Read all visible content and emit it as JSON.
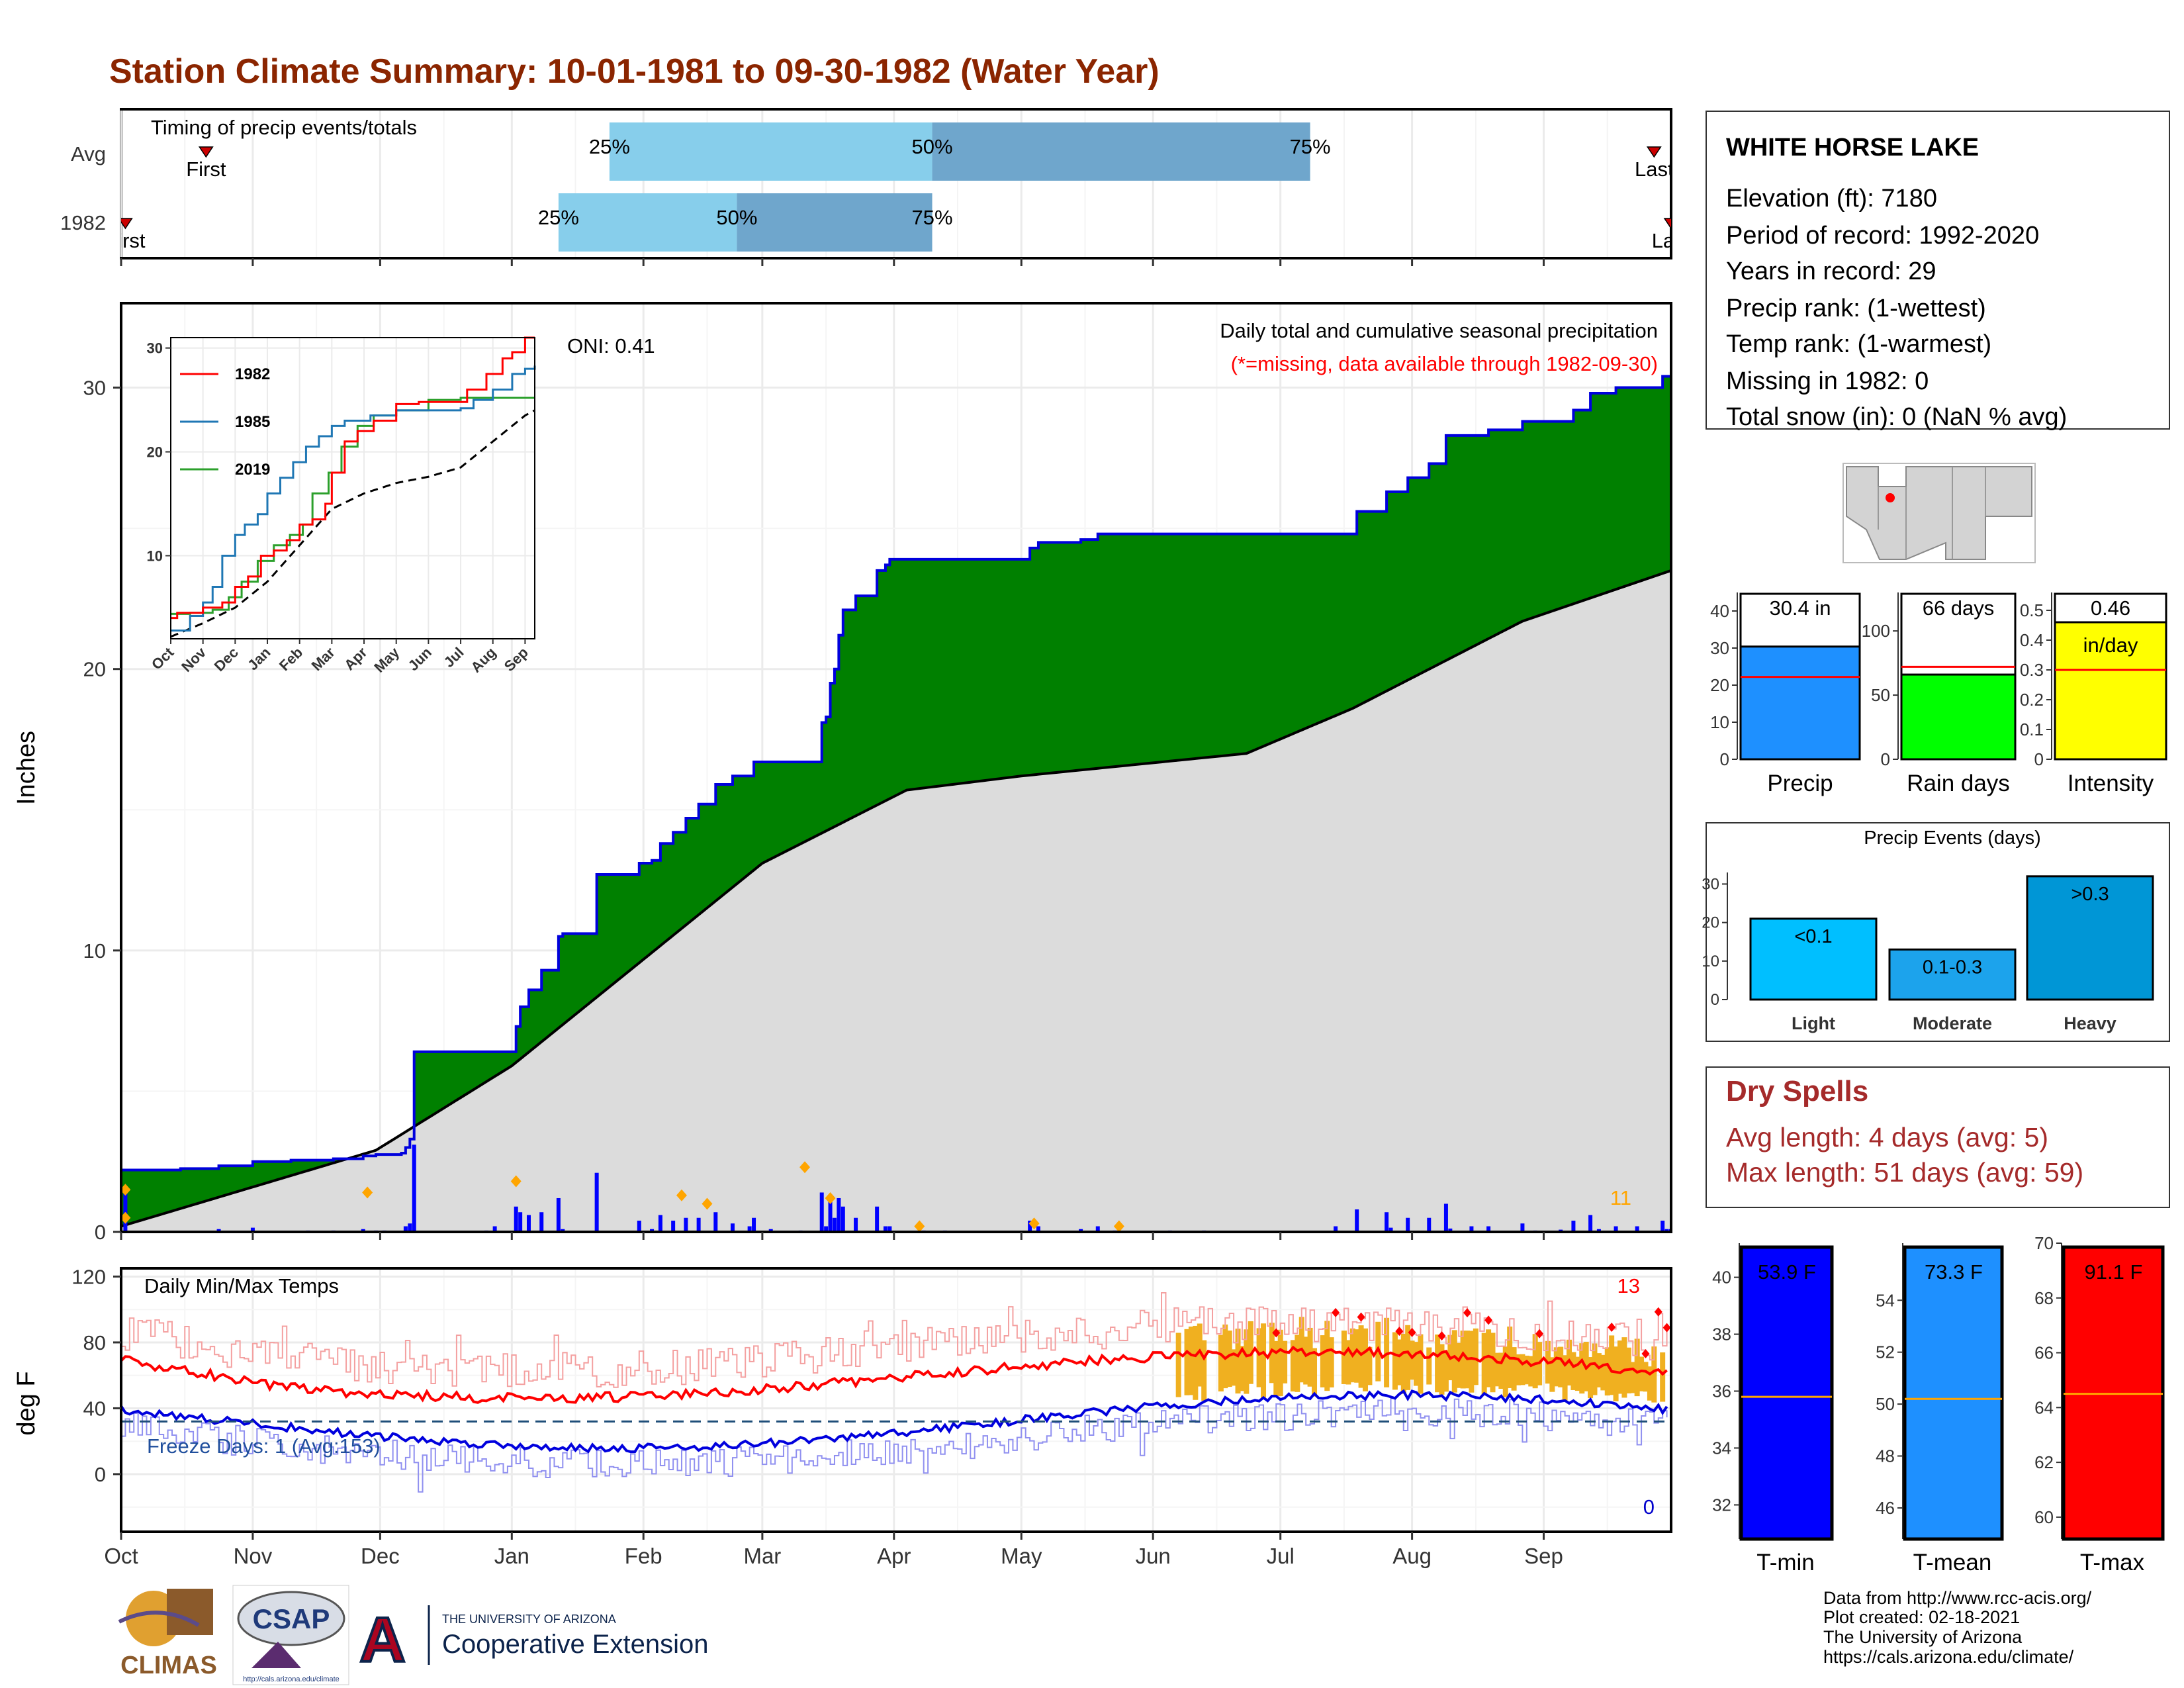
{
  "title": "Station Climate Summary: 10-01-1981 to 09-30-1982 (Water Year)",
  "colors": {
    "title": "#8B2500",
    "cum_fill": "#008000",
    "cum_line": "#0000DD",
    "avg_fill": "#DCDCDC",
    "daily_bar": "#0000FF",
    "marker": "#FFA500",
    "q_light": "#87CEEB",
    "q_dark": "#6FA6CC",
    "dry_text": "#A52A2A"
  },
  "months": [
    "Oct",
    "Nov",
    "Dec",
    "Jan",
    "Feb",
    "Mar",
    "Apr",
    "May",
    "Jun",
    "Jul",
    "Aug",
    "Sep"
  ],
  "timing": {
    "title": "Timing of precip events/totals",
    "rows": [
      {
        "label": "Avg",
        "first_label": "First",
        "last_label": "Last",
        "first_day": 20,
        "last_day": 361,
        "q25_day": 115,
        "q50_day": 191,
        "q75_day": 280,
        "q25_label": "25%",
        "q50_label": "50%",
        "q75_label": "75%"
      },
      {
        "label": "1982",
        "first_label": "First",
        "last_label": "Last",
        "first_day": 1,
        "last_day": 365,
        "q25_day": 103,
        "q50_day": 145,
        "q75_day": 191,
        "q25_label": "25%",
        "q50_label": "50%",
        "q75_label": "75%"
      }
    ]
  },
  "main": {
    "ylabel": "Inches",
    "title": "Daily total and cumulative seasonal precipitation",
    "subtitle": "(*=missing, data available through 1982-09-30)",
    "oni": "ONI: 0.41",
    "ylim": [
      0,
      33
    ],
    "yticks": [
      0,
      10,
      20,
      30
    ],
    "extreme_count": "11"
  },
  "inset": {
    "x_labels": [
      "Oct",
      "Nov",
      "Dec",
      "Jan",
      "Feb",
      "Mar",
      "Apr",
      "May",
      "Jun",
      "Jul",
      "Aug",
      "Sep"
    ],
    "yticks": [
      10,
      20,
      30
    ],
    "ylim": [
      2,
      31
    ],
    "series": [
      {
        "name": "1982",
        "color": "#FF0000"
      },
      {
        "name": "1985",
        "color": "#1F77B4"
      },
      {
        "name": "2019",
        "color": "#2CA02C"
      }
    ]
  },
  "temps": {
    "ylabel": "deg F",
    "title": "Daily Min/Max Temps",
    "freeze_text": "Freeze Days: 1 (Avg:153)",
    "hot_count": "13",
    "cold_count": "0",
    "ylim": [
      -35,
      125
    ],
    "yticks": [
      0,
      40,
      80,
      120
    ],
    "freeze_line": 32
  },
  "station": {
    "name": "WHITE HORSE LAKE",
    "lines": [
      "Elevation (ft): 7180",
      "Period of record: 1992-2020",
      "Years in record: 29",
      "Precip rank:  (1-wettest)",
      "Temp rank:  (1-warmest)",
      "Missing in 1982: 0",
      "Total snow (in): 0 (NaN % avg)"
    ]
  },
  "small_bars": [
    {
      "label": "Precip",
      "value_label": "30.4 in",
      "value": 30.4,
      "avg": 22.2,
      "ylim": [
        0,
        45
      ],
      "ticks": [
        0,
        10,
        20,
        30,
        40
      ],
      "color": "#1E90FF"
    },
    {
      "label": "Rain days",
      "value_label": "66 days",
      "value": 66,
      "avg": 72,
      "ylim": [
        0,
        130
      ],
      "ticks": [
        0,
        50,
        100
      ],
      "color": "#00FF00"
    },
    {
      "label": "Intensity",
      "value_label": "0.46",
      "unit_label": "in/day",
      "value": 0.46,
      "avg": 0.3,
      "ylim": [
        0,
        0.56
      ],
      "ticks": [
        0.0,
        0.1,
        0.2,
        0.3,
        0.4,
        0.5
      ],
      "color": "#FFFF00"
    }
  ],
  "events": {
    "title": "Precip Events (days)",
    "categories": [
      "Light",
      "Moderate",
      "Heavy"
    ],
    "bar_labels": [
      "<0.1",
      "0.1-0.3",
      ">0.3"
    ],
    "values": [
      21,
      13,
      32
    ],
    "colors": [
      "#00BFFF",
      "#1CA3EC",
      "#0096D6"
    ],
    "ylim": [
      0,
      33
    ],
    "ticks": [
      0,
      10,
      20,
      30
    ]
  },
  "dry_spells": {
    "title": "Dry Spells",
    "avg_line": "Avg length: 4 days (avg: 5)",
    "max_line": "Max length: 51 days (avg: 59)"
  },
  "temp_bars": [
    {
      "label": "T-min",
      "value_label": "53.9 F",
      "value": 53.9,
      "avg": 35.8,
      "ylim": [
        30.8,
        41.2
      ],
      "ticks": [
        32,
        34,
        36,
        38,
        40
      ],
      "color": "#0000FF"
    },
    {
      "label": "T-mean",
      "value_label": "73.3 F",
      "value": 73.3,
      "avg": 50.2,
      "ylim": [
        44.8,
        56.2
      ],
      "ticks": [
        46,
        48,
        50,
        52,
        54
      ],
      "color": "#1E90FF"
    },
    {
      "label": "T-max",
      "value_label": "91.1 F",
      "value": 91.1,
      "avg": 64.5,
      "ylim": [
        59.2,
        70.0
      ],
      "ticks": [
        60,
        62,
        64,
        66,
        68,
        70
      ],
      "color": "#FF0000"
    }
  ],
  "footer": {
    "lines": [
      "Data from http://www.rcc-acis.org/",
      "Plot created: 02-18-2021",
      "The University of Arizona",
      "https://cals.arizona.edu/climate/"
    ],
    "logo_climas": "CLIMAS",
    "logo_csap": "CSAP",
    "logo_csap_url": "http://cals.arizona.edu/climate",
    "ua_small": "THE UNIVERSITY OF ARIZONA",
    "ua_big": "Cooperative Extension",
    "ua_letter": "A"
  }
}
